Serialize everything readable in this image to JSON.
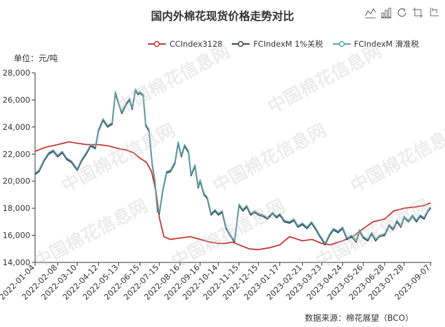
{
  "title": "国内外棉花现货价格走势对比",
  "unit_label": "单位：元/吨",
  "source_label": "数据来源：棉花展望（BCO）",
  "watermark_text": "中国棉花信息网",
  "toolbox": [
    "line-chart-icon",
    "bar-chart-icon",
    "restore-icon",
    "data-zoom-icon",
    "data-zoom-reset-icon"
  ],
  "colors": {
    "cc": "#c23531",
    "fc1": "#2f4554",
    "fc2": "#61a0a8"
  },
  "chart_data": {
    "type": "line",
    "title": "国内外棉花现货价格走势对比",
    "ylabel": "单位：元/吨",
    "xlabel": "",
    "ylim": [
      14000,
      28000
    ],
    "yticks": [
      "14,000",
      "16,000",
      "18,000",
      "20,000",
      "22,000",
      "24,000",
      "26,000",
      "28,000"
    ],
    "x_range": [
      "2022-01-04",
      "2023-09-08"
    ],
    "categories": [
      "2022-01-04",
      "2022-02-08",
      "2022-03-10",
      "2022-04-12",
      "2022-05-13",
      "2022-06-15",
      "2022-07-15",
      "2022-08-16",
      "2022-09-16",
      "2022-10-14",
      "2022-11-15",
      "2022-12-15",
      "2023-01-17",
      "2023-02-21",
      "2023-03-23",
      "2023-04-24",
      "2023-05-26",
      "2023-06-28",
      "2023-07-28",
      "2023-09-07"
    ],
    "grid": false,
    "legend_position": "top-right",
    "series": [
      {
        "name": "CCIndex3128",
        "color": "#c23531",
        "points": [
          [
            "2022-01-04",
            22200
          ],
          [
            "2022-01-20",
            22500
          ],
          [
            "2022-02-08",
            22700
          ],
          [
            "2022-02-25",
            22900
          ],
          [
            "2022-03-10",
            22800
          ],
          [
            "2022-03-25",
            22700
          ],
          [
            "2022-04-12",
            22700
          ],
          [
            "2022-04-28",
            22600
          ],
          [
            "2022-05-13",
            22400
          ],
          [
            "2022-05-25",
            22300
          ],
          [
            "2022-06-05",
            22100
          ],
          [
            "2022-06-15",
            21700
          ],
          [
            "2022-06-25",
            21400
          ],
          [
            "2022-07-03",
            20700
          ],
          [
            "2022-07-10",
            19200
          ],
          [
            "2022-07-15",
            17300
          ],
          [
            "2022-07-22",
            15900
          ],
          [
            "2022-08-01",
            15700
          ],
          [
            "2022-08-16",
            15800
          ],
          [
            "2022-09-01",
            15900
          ],
          [
            "2022-09-16",
            15700
          ],
          [
            "2022-10-01",
            15500
          ],
          [
            "2022-10-14",
            15400
          ],
          [
            "2022-10-25",
            15400
          ],
          [
            "2022-11-05",
            15500
          ],
          [
            "2022-11-15",
            15300
          ],
          [
            "2022-12-01",
            15000
          ],
          [
            "2022-12-15",
            14950
          ],
          [
            "2023-01-03",
            15100
          ],
          [
            "2023-01-17",
            15300
          ],
          [
            "2023-02-01",
            15900
          ],
          [
            "2023-02-21",
            15600
          ],
          [
            "2023-03-08",
            15700
          ],
          [
            "2023-03-23",
            15400
          ],
          [
            "2023-04-05",
            15300
          ],
          [
            "2023-04-24",
            15600
          ],
          [
            "2023-05-10",
            15900
          ],
          [
            "2023-05-26",
            16500
          ],
          [
            "2023-06-10",
            17000
          ],
          [
            "2023-06-28",
            17200
          ],
          [
            "2023-07-12",
            17800
          ],
          [
            "2023-07-28",
            18000
          ],
          [
            "2023-08-15",
            18100
          ],
          [
            "2023-08-28",
            18200
          ],
          [
            "2023-09-07",
            18400
          ]
        ]
      },
      {
        "name": "FCIndexM 1%关税",
        "color": "#2f4554",
        "points": [
          [
            "2022-01-04",
            20500
          ],
          [
            "2022-01-10",
            20700
          ],
          [
            "2022-01-18",
            21500
          ],
          [
            "2022-01-25",
            22000
          ],
          [
            "2022-02-01",
            22200
          ],
          [
            "2022-02-08",
            21800
          ],
          [
            "2022-02-15",
            22100
          ],
          [
            "2022-02-22",
            21600
          ],
          [
            "2022-03-01",
            21400
          ],
          [
            "2022-03-10",
            20800
          ],
          [
            "2022-03-17",
            21500
          ],
          [
            "2022-03-24",
            22000
          ],
          [
            "2022-03-31",
            22600
          ],
          [
            "2022-04-07",
            22400
          ],
          [
            "2022-04-12",
            23700
          ],
          [
            "2022-04-19",
            24500
          ],
          [
            "2022-04-26",
            24000
          ],
          [
            "2022-05-03",
            24200
          ],
          [
            "2022-05-08",
            26500
          ],
          [
            "2022-05-13",
            25700
          ],
          [
            "2022-05-18",
            25000
          ],
          [
            "2022-05-24",
            25600
          ],
          [
            "2022-05-30",
            26000
          ],
          [
            "2022-06-03",
            25300
          ],
          [
            "2022-06-08",
            26700
          ],
          [
            "2022-06-12",
            26400
          ],
          [
            "2022-06-15",
            26500
          ],
          [
            "2022-06-20",
            26300
          ],
          [
            "2022-06-24",
            24100
          ],
          [
            "2022-06-29",
            23700
          ],
          [
            "2022-07-04",
            21200
          ],
          [
            "2022-07-08",
            20000
          ],
          [
            "2022-07-12",
            17800
          ],
          [
            "2022-07-15",
            17600
          ],
          [
            "2022-07-20",
            19200
          ],
          [
            "2022-07-26",
            20600
          ],
          [
            "2022-08-01",
            20700
          ],
          [
            "2022-08-08",
            21300
          ],
          [
            "2022-08-13",
            22800
          ],
          [
            "2022-08-18",
            21800
          ],
          [
            "2022-08-23",
            22600
          ],
          [
            "2022-08-29",
            22100
          ],
          [
            "2022-09-02",
            20400
          ],
          [
            "2022-09-08",
            21100
          ],
          [
            "2022-09-13",
            19500
          ],
          [
            "2022-09-16",
            20000
          ],
          [
            "2022-09-22",
            19000
          ],
          [
            "2022-09-27",
            18700
          ],
          [
            "2022-10-03",
            17500
          ],
          [
            "2022-10-09",
            17800
          ],
          [
            "2022-10-14",
            17500
          ],
          [
            "2022-10-20",
            17700
          ],
          [
            "2022-10-26",
            16500
          ],
          [
            "2022-11-01",
            16000
          ],
          [
            "2022-11-08",
            15500
          ],
          [
            "2022-11-15",
            18200
          ],
          [
            "2022-11-21",
            17800
          ],
          [
            "2022-11-27",
            18100
          ],
          [
            "2022-12-03",
            17500
          ],
          [
            "2022-12-09",
            17700
          ],
          [
            "2022-12-15",
            17500
          ],
          [
            "2022-12-22",
            17400
          ],
          [
            "2022-12-29",
            17200
          ],
          [
            "2023-01-06",
            17600
          ],
          [
            "2023-01-12",
            17300
          ],
          [
            "2023-01-17",
            17500
          ],
          [
            "2023-01-24",
            17000
          ],
          [
            "2023-02-01",
            16900
          ],
          [
            "2023-02-08",
            17100
          ],
          [
            "2023-02-14",
            16600
          ],
          [
            "2023-02-21",
            16800
          ],
          [
            "2023-02-28",
            16500
          ],
          [
            "2023-03-07",
            16900
          ],
          [
            "2023-03-14",
            16400
          ],
          [
            "2023-03-20",
            15900
          ],
          [
            "2023-03-23",
            15700
          ],
          [
            "2023-03-28",
            15300
          ],
          [
            "2023-04-04",
            16000
          ],
          [
            "2023-04-10",
            16400
          ],
          [
            "2023-04-17",
            16200
          ],
          [
            "2023-04-24",
            16500
          ],
          [
            "2023-05-01",
            15700
          ],
          [
            "2023-05-08",
            15900
          ],
          [
            "2023-05-15",
            15500
          ],
          [
            "2023-05-20",
            16300
          ],
          [
            "2023-05-26",
            15800
          ],
          [
            "2023-06-02",
            15600
          ],
          [
            "2023-06-08",
            16100
          ],
          [
            "2023-06-14",
            15600
          ],
          [
            "2023-06-20",
            15900
          ],
          [
            "2023-06-28",
            16000
          ],
          [
            "2023-07-05",
            16700
          ],
          [
            "2023-07-11",
            16400
          ],
          [
            "2023-07-17",
            17000
          ],
          [
            "2023-07-23",
            16600
          ],
          [
            "2023-07-28",
            17300
          ],
          [
            "2023-08-04",
            17000
          ],
          [
            "2023-08-10",
            17400
          ],
          [
            "2023-08-16",
            17000
          ],
          [
            "2023-08-22",
            17400
          ],
          [
            "2023-08-28",
            17200
          ],
          [
            "2023-09-02",
            17700
          ],
          [
            "2023-09-07",
            18000
          ]
        ]
      },
      {
        "name": "FCIndexM 滑准税",
        "color": "#61a0a8",
        "points": [
          [
            "2022-01-04",
            20600
          ],
          [
            "2022-01-10",
            20800
          ],
          [
            "2022-01-18",
            21600
          ],
          [
            "2022-01-25",
            22100
          ],
          [
            "2022-02-01",
            22300
          ],
          [
            "2022-02-08",
            21900
          ],
          [
            "2022-02-15",
            22200
          ],
          [
            "2022-02-22",
            21700
          ],
          [
            "2022-03-01",
            21500
          ],
          [
            "2022-03-10",
            20900
          ],
          [
            "2022-03-17",
            21600
          ],
          [
            "2022-03-24",
            22100
          ],
          [
            "2022-03-31",
            22700
          ],
          [
            "2022-04-07",
            22500
          ],
          [
            "2022-04-12",
            23800
          ],
          [
            "2022-04-19",
            24600
          ],
          [
            "2022-04-26",
            24100
          ],
          [
            "2022-05-03",
            24300
          ],
          [
            "2022-05-08",
            26600
          ],
          [
            "2022-05-13",
            25800
          ],
          [
            "2022-05-18",
            25100
          ],
          [
            "2022-05-24",
            25700
          ],
          [
            "2022-05-30",
            26100
          ],
          [
            "2022-06-03",
            25400
          ],
          [
            "2022-06-08",
            26800
          ],
          [
            "2022-06-12",
            26500
          ],
          [
            "2022-06-15",
            26600
          ],
          [
            "2022-06-20",
            26400
          ],
          [
            "2022-06-24",
            24200
          ],
          [
            "2022-06-29",
            23800
          ],
          [
            "2022-07-04",
            21300
          ],
          [
            "2022-07-08",
            20100
          ],
          [
            "2022-07-12",
            17900
          ],
          [
            "2022-07-15",
            17700
          ],
          [
            "2022-07-20",
            19300
          ],
          [
            "2022-07-26",
            20700
          ],
          [
            "2022-08-01",
            20800
          ],
          [
            "2022-08-08",
            21400
          ],
          [
            "2022-08-13",
            22900
          ],
          [
            "2022-08-18",
            21900
          ],
          [
            "2022-08-23",
            22700
          ],
          [
            "2022-08-29",
            22200
          ],
          [
            "2022-09-02",
            20500
          ],
          [
            "2022-09-08",
            21200
          ],
          [
            "2022-09-13",
            19600
          ],
          [
            "2022-09-16",
            20100
          ],
          [
            "2022-09-22",
            19100
          ],
          [
            "2022-09-27",
            18800
          ],
          [
            "2022-10-03",
            17600
          ],
          [
            "2022-10-09",
            17900
          ],
          [
            "2022-10-14",
            17600
          ],
          [
            "2022-10-20",
            17800
          ],
          [
            "2022-10-26",
            16600
          ],
          [
            "2022-11-01",
            16100
          ],
          [
            "2022-11-08",
            15600
          ],
          [
            "2022-11-15",
            18300
          ],
          [
            "2022-11-21",
            17900
          ],
          [
            "2022-11-27",
            18200
          ],
          [
            "2022-12-03",
            17600
          ],
          [
            "2022-12-09",
            17800
          ],
          [
            "2022-12-15",
            17600
          ],
          [
            "2022-12-22",
            17500
          ],
          [
            "2022-12-29",
            17300
          ],
          [
            "2023-01-06",
            17700
          ],
          [
            "2023-01-12",
            17400
          ],
          [
            "2023-01-17",
            17600
          ],
          [
            "2023-01-24",
            17100
          ],
          [
            "2023-02-01",
            17000
          ],
          [
            "2023-02-08",
            17200
          ],
          [
            "2023-02-14",
            16700
          ],
          [
            "2023-02-21",
            16900
          ],
          [
            "2023-02-28",
            16600
          ],
          [
            "2023-03-07",
            17000
          ],
          [
            "2023-03-14",
            16500
          ],
          [
            "2023-03-20",
            16000
          ],
          [
            "2023-03-23",
            15800
          ],
          [
            "2023-03-28",
            15400
          ],
          [
            "2023-04-04",
            16100
          ],
          [
            "2023-04-10",
            16500
          ],
          [
            "2023-04-17",
            16300
          ],
          [
            "2023-04-24",
            16600
          ],
          [
            "2023-05-01",
            15800
          ],
          [
            "2023-05-08",
            16000
          ],
          [
            "2023-05-15",
            15600
          ],
          [
            "2023-05-20",
            16400
          ],
          [
            "2023-05-26",
            15900
          ],
          [
            "2023-06-02",
            15700
          ],
          [
            "2023-06-08",
            16200
          ],
          [
            "2023-06-14",
            15700
          ],
          [
            "2023-06-20",
            16000
          ],
          [
            "2023-06-28",
            16100
          ],
          [
            "2023-07-05",
            16800
          ],
          [
            "2023-07-11",
            16500
          ],
          [
            "2023-07-17",
            17100
          ],
          [
            "2023-07-23",
            16700
          ],
          [
            "2023-07-28",
            17400
          ],
          [
            "2023-08-04",
            17100
          ],
          [
            "2023-08-10",
            17500
          ],
          [
            "2023-08-16",
            17100
          ],
          [
            "2023-08-22",
            17500
          ],
          [
            "2023-08-28",
            17300
          ],
          [
            "2023-09-02",
            17800
          ],
          [
            "2023-09-07",
            18100
          ]
        ]
      }
    ]
  }
}
